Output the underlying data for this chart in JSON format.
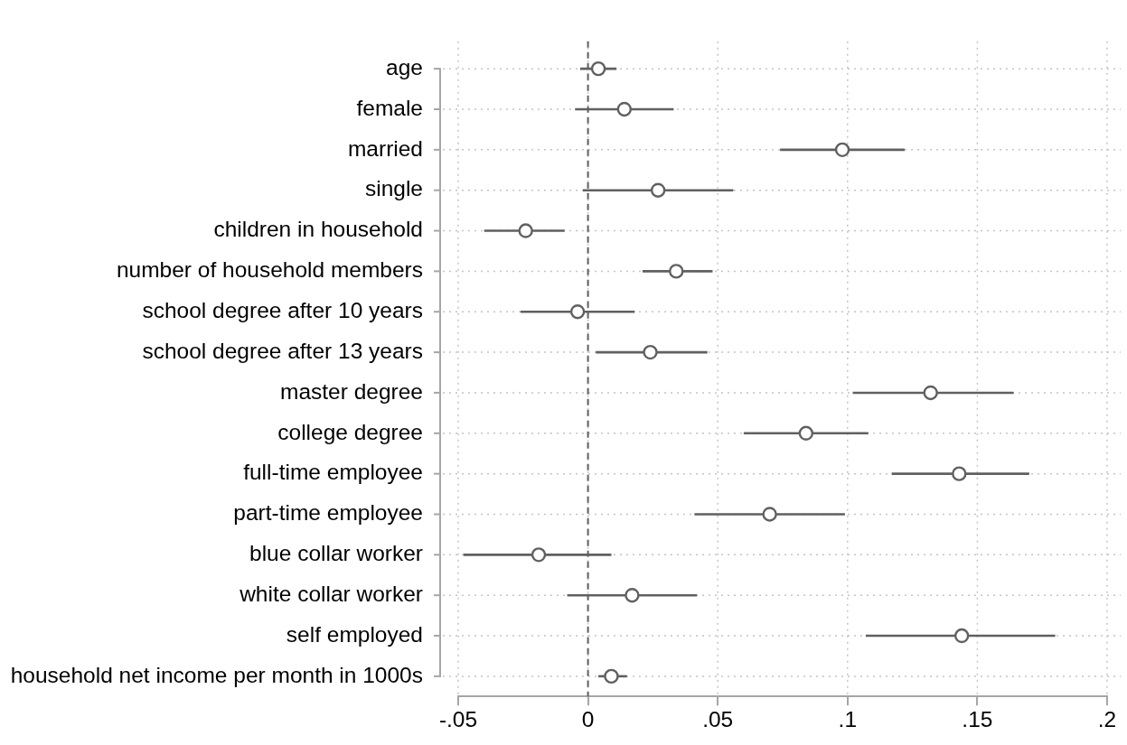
{
  "chart_data": {
    "type": "scatter",
    "orientation": "horizontal",
    "categories": [
      "age",
      "female",
      "married",
      "single",
      "children in household",
      "number of household members",
      "school degree after 10 years",
      "school degree after 13 years",
      "master degree",
      "college degree",
      "full-time employee",
      "part-time employee",
      "blue collar worker",
      "white collar worker",
      "self employed",
      "household net income per month in 1000s"
    ],
    "values": [
      0.004,
      0.014,
      0.098,
      0.027,
      -0.024,
      0.034,
      -0.004,
      0.024,
      0.132,
      0.084,
      0.143,
      0.07,
      -0.019,
      0.017,
      0.144,
      0.009
    ],
    "errors": [
      [
        -0.003,
        0.011
      ],
      [
        -0.005,
        0.033
      ],
      [
        0.074,
        0.122
      ],
      [
        -0.002,
        0.056
      ],
      [
        -0.04,
        -0.009
      ],
      [
        0.021,
        0.048
      ],
      [
        -0.026,
        0.018
      ],
      [
        0.003,
        0.046
      ],
      [
        0.102,
        0.164
      ],
      [
        0.06,
        0.108
      ],
      [
        0.117,
        0.17
      ],
      [
        0.041,
        0.099
      ],
      [
        -0.048,
        0.009
      ],
      [
        -0.008,
        0.042
      ],
      [
        0.107,
        0.18
      ],
      [
        0.004,
        0.015
      ]
    ],
    "color": "#606060",
    "marker": "circle",
    "grid": true,
    "xlim": [
      -0.05,
      0.2
    ],
    "xticks": [
      {
        "value": -0.05,
        "label": "-.05"
      },
      0,
      {
        "value": 0.05,
        "label": ".05"
      },
      {
        "value": 0.1,
        "label": ".1"
      },
      {
        "value": 0.15,
        "label": ".15"
      },
      {
        "value": 0.2,
        "label": ".2"
      }
    ],
    "ref_lines": [
      {
        "axis": "x",
        "value": 0,
        "color": "#606060",
        "line_style": "dashed"
      }
    ]
  }
}
